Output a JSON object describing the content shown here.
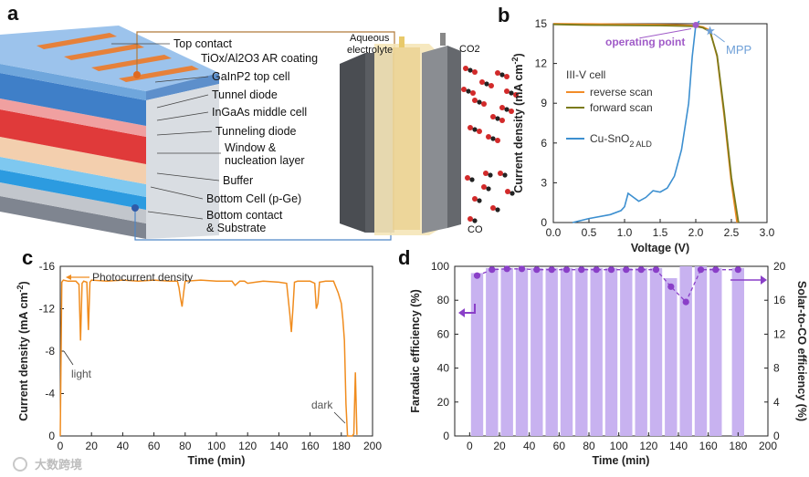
{
  "watermark": "大数跨境",
  "panel_a": {
    "letter": "a",
    "layers": [
      "Top contact",
      "TiOx/Al2O3 AR coating",
      "GaInP2 top cell",
      "Tunnel diode",
      "InGaAs middle cell",
      "Tunneling diode",
      "Window &",
      "nucleation layer",
      "Buffer",
      "Bottom Cell (p-Ge)",
      "Bottom contact",
      "& Substrate"
    ],
    "electrolyte_line1": "Aqueous",
    "electrolyte_line2": "electrolyte",
    "co2": "CO2",
    "co": "CO",
    "colors": {
      "top_cell": "#3f7fc8",
      "middle_cell": "#e03a3a",
      "window": "#f1c7a3",
      "bottom_cell": "#2c9be0",
      "substrate": "#8c8c96",
      "contact": "#e6813a"
    }
  },
  "chart_data": [
    {
      "panel": "b",
      "type": "line",
      "xlabel": "Voltage (V)",
      "ylabel": "Current density  (mA cm",
      "ylabel_sup": "-2",
      "ylabel_end": ")",
      "xlim": [
        0.0,
        3.0
      ],
      "ylim": [
        0,
        15
      ],
      "xticks": [
        "0.0",
        "0.5",
        "1.0",
        "1.5",
        "2.0",
        "2.5",
        "3.0"
      ],
      "yticks": [
        "0",
        "3",
        "6",
        "9",
        "12",
        "15"
      ],
      "legend_title": "III-V cell",
      "series": [
        {
          "name": "reverse scan",
          "color": "#f28c28",
          "x": [
            0.0,
            0.5,
            1.0,
            1.5,
            1.8,
            2.0,
            2.1,
            2.2,
            2.3,
            2.4,
            2.5,
            2.58
          ],
          "y": [
            15.0,
            14.98,
            14.96,
            14.93,
            14.9,
            14.85,
            14.75,
            14.5,
            12.5,
            8.0,
            3.0,
            0.0
          ]
        },
        {
          "name": "forward scan",
          "color": "#7a7a1a",
          "x": [
            0.0,
            0.5,
            1.0,
            1.5,
            1.8,
            2.0,
            2.1,
            2.2,
            2.3,
            2.4,
            2.5,
            2.6
          ],
          "y": [
            14.95,
            14.9,
            14.88,
            14.86,
            14.83,
            14.8,
            14.7,
            14.4,
            12.6,
            8.3,
            3.4,
            0.0
          ]
        },
        {
          "name": "Cu-SnO",
          "name_sub": "2 ALD",
          "color": "#3c8fd0",
          "x": [
            0.27,
            0.5,
            0.8,
            0.95,
            1.0,
            1.05,
            1.1,
            1.2,
            1.3,
            1.4,
            1.5,
            1.6,
            1.7,
            1.8,
            1.9,
            1.95,
            2.0,
            2.05
          ],
          "y": [
            0.0,
            0.3,
            0.6,
            0.9,
            1.2,
            2.2,
            2.0,
            1.6,
            1.9,
            2.4,
            2.3,
            2.6,
            3.5,
            5.5,
            9.0,
            12.5,
            14.9,
            15.2
          ]
        }
      ],
      "annotations": [
        {
          "text": "operating point",
          "x": 2.0,
          "y": 14.9,
          "color": "#a05bc8"
        },
        {
          "text": "MPP",
          "x": 2.2,
          "y": 14.45,
          "color": "#6fa0d8"
        }
      ]
    },
    {
      "panel": "c",
      "type": "line",
      "xlabel": "Time (min)",
      "ylabel": "Current density (mA cm",
      "ylabel_sup": "-2",
      "ylabel_end": ")",
      "xlim": [
        0,
        200
      ],
      "ylim": [
        0,
        -16
      ],
      "xticks": [
        "0",
        "20",
        "40",
        "60",
        "80",
        "100",
        "120",
        "140",
        "160",
        "180",
        "200"
      ],
      "yticks": [
        "0",
        "-4",
        "-8",
        "-12",
        "-16"
      ],
      "legend": "Photocurrent density",
      "series": [
        {
          "name": "Photocurrent density",
          "color": "#f08c1e",
          "x": [
            0,
            1,
            2,
            5,
            10,
            12,
            13,
            14,
            15,
            17,
            18,
            19,
            20,
            30,
            40,
            50,
            60,
            70,
            75,
            76,
            77,
            78,
            79,
            80,
            90,
            100,
            110,
            112,
            115,
            118,
            120,
            125,
            130,
            140,
            145,
            147,
            148,
            149,
            150,
            152,
            155,
            160,
            163,
            164,
            165,
            166,
            170,
            175,
            178,
            180,
            181,
            182,
            183,
            184,
            185,
            186,
            187,
            188,
            189,
            190
          ],
          "y": [
            0,
            -14.5,
            -14.7,
            -14.6,
            -14.6,
            -14.3,
            -9.0,
            -14.4,
            -14.6,
            -14.5,
            -10.0,
            -14.5,
            -14.7,
            -14.6,
            -14.7,
            -14.6,
            -14.7,
            -14.6,
            -14.6,
            -14.0,
            -13.0,
            -12.2,
            -13.5,
            -14.6,
            -14.7,
            -14.6,
            -14.6,
            -14.2,
            -14.6,
            -14.6,
            -14.4,
            -14.5,
            -14.6,
            -14.5,
            -14.4,
            -11.5,
            -9.8,
            -12.0,
            -14.5,
            -14.6,
            -14.6,
            -14.6,
            -14.4,
            -12.0,
            -12.5,
            -14.5,
            -14.6,
            -14.6,
            -13.5,
            -12.5,
            -11.0,
            -9.0,
            -3.0,
            0,
            0,
            0,
            0,
            -0.2,
            -6.0,
            -0.1
          ]
        }
      ],
      "annotations": [
        {
          "text": "light",
          "x": 5,
          "y": -7.5
        },
        {
          "text": "dark",
          "x": 176,
          "y": -1.6
        }
      ]
    },
    {
      "panel": "d",
      "type": "bar",
      "xlabel": "Time (min)",
      "ylabel": "Faradaic efficiency (%)",
      "ylabel_right": "Solar-to-CO efficiency (%)",
      "xlim": [
        -10,
        200
      ],
      "ylim": [
        0,
        100
      ],
      "ylim_right": [
        0,
        20
      ],
      "xticks": [
        "0",
        "20",
        "40",
        "60",
        "80",
        "100",
        "120",
        "140",
        "160",
        "180",
        "200"
      ],
      "yticks": [
        "0",
        "20",
        "40",
        "60",
        "80",
        "100"
      ],
      "yticks_right": [
        "0",
        "4",
        "8",
        "12",
        "16",
        "20"
      ],
      "bar_color": "#c8b2f0",
      "line_color": "#8a3fc8",
      "x": [
        5,
        15,
        25,
        35,
        45,
        55,
        65,
        75,
        85,
        95,
        105,
        115,
        125,
        135,
        145,
        155,
        165,
        180
      ],
      "faradaic_efficiency": [
        96,
        99,
        99,
        99,
        99,
        99,
        99,
        99,
        99,
        99,
        99,
        99,
        99,
        93,
        100,
        100,
        99,
        99
      ],
      "solar_to_co_efficiency": [
        18.9,
        19.6,
        19.7,
        19.7,
        19.6,
        19.6,
        19.6,
        19.6,
        19.6,
        19.6,
        19.6,
        19.6,
        19.6,
        17.6,
        15.8,
        19.6,
        19.6,
        19.6
      ]
    }
  ]
}
